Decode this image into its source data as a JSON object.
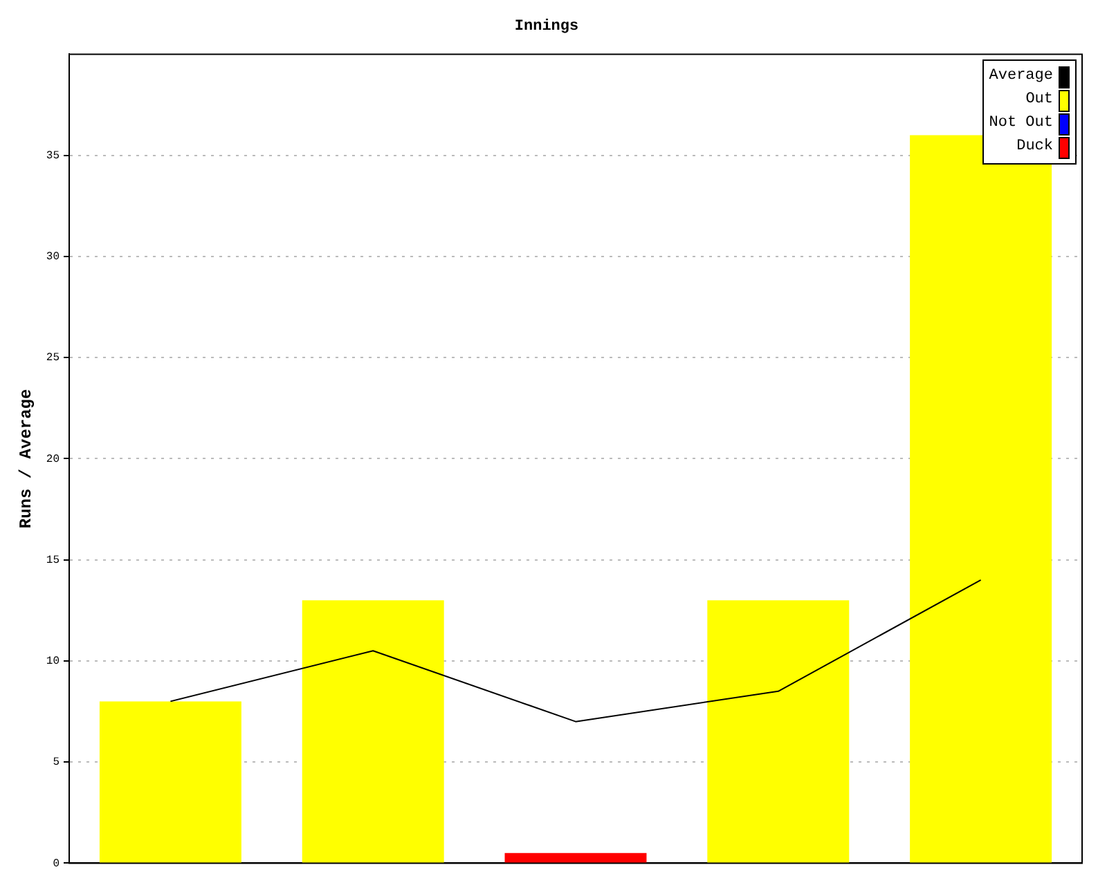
{
  "chart_data": {
    "type": "bar",
    "title": "Innings",
    "ylabel": "Runs / Average",
    "categories": [
      null,
      null,
      null,
      null,
      null
    ],
    "stacked": true,
    "ylim": [
      0,
      40
    ],
    "yticks": [
      0,
      5,
      10,
      15,
      20,
      25,
      30,
      35
    ],
    "grid": "y",
    "legend": "top right",
    "series": [
      {
        "name": "Average",
        "type": "line",
        "color": "#000000",
        "values": [
          8,
          10.5,
          7,
          8.5,
          14
        ]
      },
      {
        "name": "Out",
        "color": "#ffff00",
        "values": [
          8,
          13,
          null,
          13,
          36
        ]
      },
      {
        "name": "Not Out",
        "color": "#0000ff",
        "values": [
          null,
          null,
          null,
          null,
          null
        ]
      },
      {
        "name": "Duck",
        "color": "#ff0000",
        "values": [
          null,
          null,
          0.5,
          null,
          null
        ]
      }
    ]
  }
}
